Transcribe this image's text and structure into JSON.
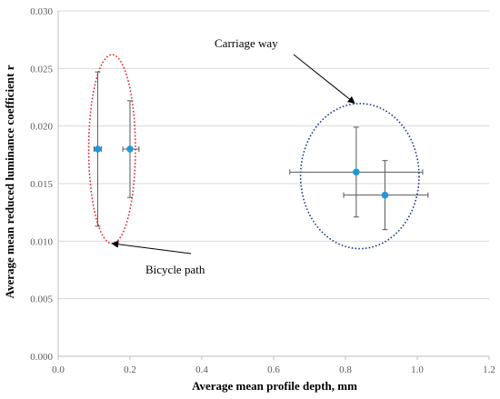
{
  "chart_data": {
    "type": "scatter",
    "xlabel": "Average mean profile depth, mm",
    "ylabel": "Average mean reduced luminance coefficient r",
    "xlim": [
      0.0,
      1.2
    ],
    "ylim": [
      0.0,
      0.03
    ],
    "x_ticks": [
      "0.0",
      "0.2",
      "0.4",
      "0.6",
      "0.8",
      "1.0",
      "1.2"
    ],
    "y_ticks": [
      "0.000",
      "0.005",
      "0.010",
      "0.015",
      "0.020",
      "0.025",
      "0.030"
    ],
    "grid": "horizontal",
    "points": [
      {
        "x": 0.11,
        "y": 0.018,
        "x_err": [
          0.1,
          0.12
        ],
        "y_err": [
          0.0113,
          0.0247
        ]
      },
      {
        "x": 0.2,
        "y": 0.018,
        "x_err": [
          0.18,
          0.225
        ],
        "y_err": [
          0.0138,
          0.0222
        ]
      },
      {
        "x": 0.83,
        "y": 0.016,
        "x_err": [
          0.645,
          1.015
        ],
        "y_err": [
          0.0121,
          0.0199
        ]
      },
      {
        "x": 0.91,
        "y": 0.014,
        "x_err": [
          0.795,
          1.03
        ],
        "y_err": [
          0.011,
          0.017
        ]
      }
    ],
    "annotations": [
      {
        "text": "Bicycle path",
        "ellipse": {
          "cx": 0.15,
          "cy": 0.018,
          "rx": 0.065,
          "ry": 0.0082
        },
        "color": "#e3262b",
        "arrow_to": {
          "x": 0.15,
          "y": 0.0098
        }
      },
      {
        "text": "Carriage way",
        "ellipse": {
          "cx": 0.84,
          "cy": 0.01565,
          "rx": 0.165,
          "ry": 0.0063
        },
        "color": "#1f3d8a",
        "arrow_to": {
          "x": 0.825,
          "y": 0.022
        }
      }
    ],
    "colors": {
      "point": "#1f9ad6",
      "error_bar": "#595959"
    }
  }
}
